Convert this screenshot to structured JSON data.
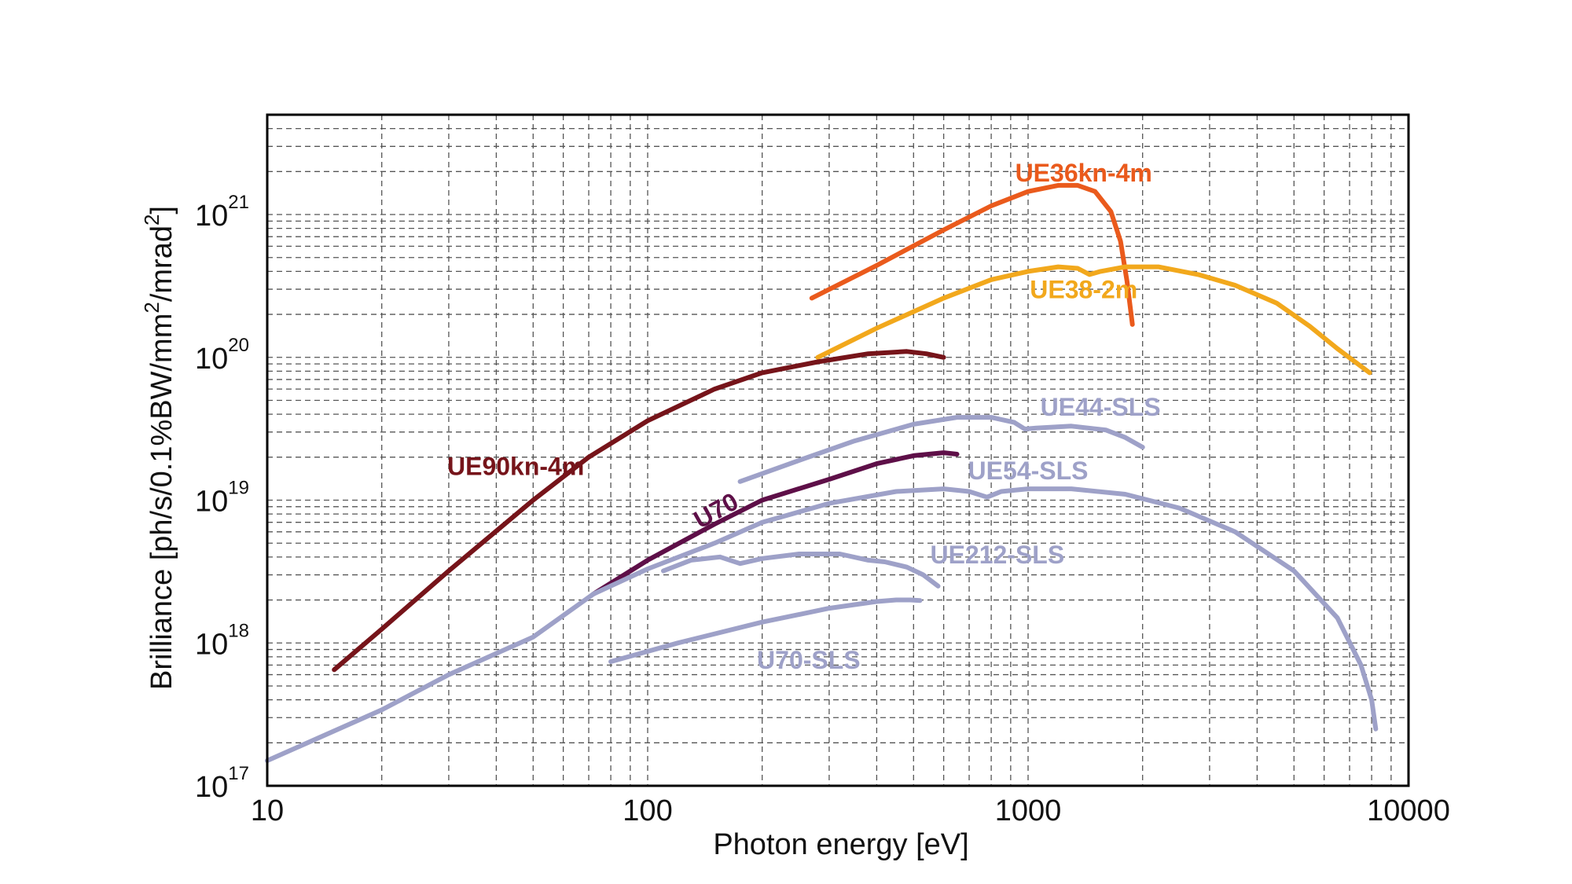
{
  "chart_data": {
    "type": "line",
    "xlabel": "Photon energy [eV]",
    "ylabel_parts": {
      "prefix": "Brilliance [ph/s/0.1%BW/mm",
      "sup1": "2",
      "middle": "/mrad",
      "sup2": "2",
      "suffix": "]"
    },
    "x_scale": "log",
    "y_scale": "log",
    "xlim": [
      10,
      10000
    ],
    "ylim": [
      1e+17,
      5e+21
    ],
    "grid": true,
    "x_ticks": [
      {
        "value": 10,
        "label": "10"
      },
      {
        "value": 100,
        "label": "100"
      },
      {
        "value": 1000,
        "label": "1000"
      },
      {
        "value": 10000,
        "label": "10000"
      }
    ],
    "y_ticks": [
      {
        "value": 1e+17,
        "base": "10",
        "exp": "17"
      },
      {
        "value": 1e+18,
        "base": "10",
        "exp": "18"
      },
      {
        "value": 1e+19,
        "base": "10",
        "exp": "19"
      },
      {
        "value": 1e+20,
        "base": "10",
        "exp": "20"
      },
      {
        "value": 1e+21,
        "base": "10",
        "exp": "21"
      }
    ],
    "series": [
      {
        "name": "UE36kn-4m",
        "color": "#ea5a1c",
        "label_at": {
          "x": 1400,
          "y": 1.7e+21,
          "rotate": 0
        },
        "points": [
          [
            270,
            2.6e+20
          ],
          [
            400,
            4.4e+20
          ],
          [
            600,
            7.8e+20
          ],
          [
            800,
            1.15e+21
          ],
          [
            1000,
            1.45e+21
          ],
          [
            1200,
            1.6e+21
          ],
          [
            1350,
            1.6e+21
          ],
          [
            1500,
            1.45e+21
          ],
          [
            1650,
            1.05e+21
          ],
          [
            1750,
            6.5e+20
          ],
          [
            1820,
            3.4e+20
          ],
          [
            1880,
            1.7e+20
          ]
        ]
      },
      {
        "name": "UE38-2m",
        "color": "#f2a81c",
        "label_at": {
          "x": 1400,
          "y": 2.6e+20,
          "rotate": 0
        },
        "points": [
          [
            280,
            1e+20
          ],
          [
            400,
            1.6e+20
          ],
          [
            600,
            2.6e+20
          ],
          [
            800,
            3.5e+20
          ],
          [
            1000,
            4e+20
          ],
          [
            1200,
            4.3e+20
          ],
          [
            1350,
            4.2e+20
          ],
          [
            1450,
            3.8e+20
          ],
          [
            1550,
            4e+20
          ],
          [
            1800,
            4.3e+20
          ],
          [
            2200,
            4.3e+20
          ],
          [
            2800,
            3.8e+20
          ],
          [
            3500,
            3.2e+20
          ],
          [
            4500,
            2.4e+20
          ],
          [
            5500,
            1.65e+20
          ],
          [
            6500,
            1.15e+20
          ],
          [
            7900,
            7.8e+19
          ]
        ]
      },
      {
        "name": "UE90kn-4m",
        "color": "#76141a",
        "label_at": {
          "x": 45,
          "y": 1.5e+19,
          "rotate": 0
        },
        "points": [
          [
            15,
            6.5e+17
          ],
          [
            20,
            1.25e+18
          ],
          [
            30,
            3.2e+18
          ],
          [
            50,
            1e+19
          ],
          [
            70,
            2e+19
          ],
          [
            100,
            3.6e+19
          ],
          [
            150,
            6e+19
          ],
          [
            200,
            7.8e+19
          ],
          [
            280,
            9.3e+19
          ],
          [
            380,
            1.06e+20
          ],
          [
            480,
            1.1e+20
          ],
          [
            540,
            1.06e+20
          ],
          [
            600,
            1e+20
          ]
        ]
      },
      {
        "name": "U70",
        "color": "#5e0f48",
        "label_at": {
          "x": 155,
          "y": 7.5e+18,
          "rotate": -29
        },
        "points": [
          [
            72,
            2.2e+18
          ],
          [
            100,
            3.8e+18
          ],
          [
            150,
            6.8e+18
          ],
          [
            200,
            1e+19
          ],
          [
            300,
            1.4e+19
          ],
          [
            400,
            1.8e+19
          ],
          [
            500,
            2.05e+19
          ],
          [
            600,
            2.15e+19
          ],
          [
            650,
            2.1e+19
          ]
        ]
      },
      {
        "name": "UE44-SLS",
        "color": "#9ea1c8",
        "label_at": {
          "x": 1550,
          "y": 3.9e+19,
          "rotate": 0
        },
        "points": [
          [
            175,
            1.35e+19
          ],
          [
            250,
            1.9e+19
          ],
          [
            350,
            2.6e+19
          ],
          [
            500,
            3.4e+19
          ],
          [
            650,
            3.8e+19
          ],
          [
            800,
            3.8e+19
          ],
          [
            920,
            3.5e+19
          ],
          [
            980,
            3.15e+19
          ],
          [
            1050,
            3.2e+19
          ],
          [
            1300,
            3.3e+19
          ],
          [
            1600,
            3.1e+19
          ],
          [
            1800,
            2.75e+19
          ],
          [
            2000,
            2.35e+19
          ]
        ]
      },
      {
        "name": "UE54-SLS",
        "color": "#9ea1c8",
        "label_at": {
          "x": 1000,
          "y": 1.4e+19,
          "rotate": 0
        },
        "points": [
          [
            10,
            1.5e+17
          ],
          [
            20,
            3.4e+17
          ],
          [
            30,
            6e+17
          ],
          [
            50,
            1.1e+18
          ],
          [
            72,
            2.2e+18
          ],
          [
            100,
            3.3e+18
          ],
          [
            150,
            5e+18
          ],
          [
            200,
            7e+18
          ],
          [
            300,
            9.5e+18
          ],
          [
            450,
            1.15e+19
          ],
          [
            600,
            1.2e+19
          ],
          [
            700,
            1.15e+19
          ],
          [
            780,
            1.05e+19
          ],
          [
            850,
            1.15e+19
          ],
          [
            1000,
            1.2e+19
          ],
          [
            1300,
            1.2e+19
          ],
          [
            1800,
            1.1e+19
          ],
          [
            2500,
            8.8e+18
          ],
          [
            3500,
            6e+18
          ],
          [
            5000,
            3.2e+18
          ],
          [
            6500,
            1.5e+18
          ],
          [
            7500,
            7e+17
          ],
          [
            8000,
            4e+17
          ],
          [
            8200,
            2.5e+17
          ]
        ]
      },
      {
        "name": "UE212-SLS",
        "color": "#9ea1c8",
        "label_at": {
          "x": 830,
          "y": 3.6e+18,
          "rotate": 0
        },
        "points": [
          [
            110,
            3.2e+18
          ],
          [
            130,
            3.8e+18
          ],
          [
            155,
            4e+18
          ],
          [
            175,
            3.6e+18
          ],
          [
            200,
            3.9e+18
          ],
          [
            250,
            4.2e+18
          ],
          [
            320,
            4.2e+18
          ],
          [
            380,
            3.8e+18
          ],
          [
            420,
            3.7e+18
          ],
          [
            480,
            3.4e+18
          ],
          [
            530,
            3e+18
          ],
          [
            580,
            2.5e+18
          ]
        ]
      },
      {
        "name": "U70-SLS",
        "color": "#9ea1c8",
        "label_at": {
          "x": 265,
          "y": 6.6e+17,
          "rotate": 0
        },
        "points": [
          [
            80,
            7.4e+17
          ],
          [
            120,
            1e+18
          ],
          [
            200,
            1.4e+18
          ],
          [
            300,
            1.75e+18
          ],
          [
            400,
            1.95e+18
          ],
          [
            450,
            2e+18
          ],
          [
            490,
            2e+18
          ],
          [
            520,
            1.98e+18
          ]
        ]
      }
    ]
  }
}
